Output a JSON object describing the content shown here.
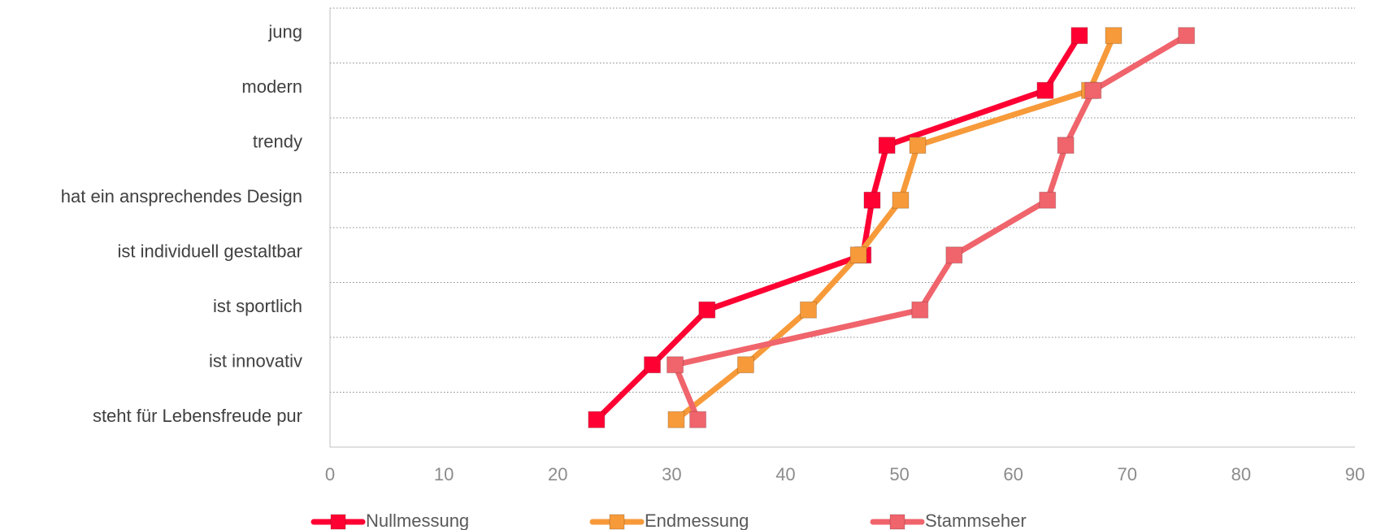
{
  "chart_data": {
    "type": "line",
    "orientation": "horizontal",
    "categories": [
      "jung",
      "modern",
      "trendy",
      "hat ein ansprechendes Design",
      "ist individuell gestaltbar",
      "ist sportlich",
      "ist innovativ",
      "steht für Lebensfreude pur"
    ],
    "x_ticks": [
      "0",
      "10",
      "20",
      "30",
      "40",
      "50",
      "60",
      "70",
      "80",
      "90"
    ],
    "xlim": [
      0,
      90
    ],
    "grid": "horizontal-dotted",
    "legend_position": "bottom",
    "series": [
      {
        "name": "Nullmessung",
        "color": "#ff0033",
        "values": [
          65.8,
          62.8,
          48.9,
          47.6,
          46.8,
          33.1,
          28.3,
          23.4
        ]
      },
      {
        "name": "Endmessung",
        "color": "#f79a3a",
        "values": [
          68.8,
          66.7,
          51.6,
          50.1,
          46.4,
          42.0,
          36.5,
          30.4
        ]
      },
      {
        "name": "Stammseher",
        "color": "#f0646c",
        "values": [
          75.2,
          67.0,
          64.6,
          63.0,
          54.8,
          51.8,
          30.3,
          32.3
        ]
      }
    ]
  }
}
